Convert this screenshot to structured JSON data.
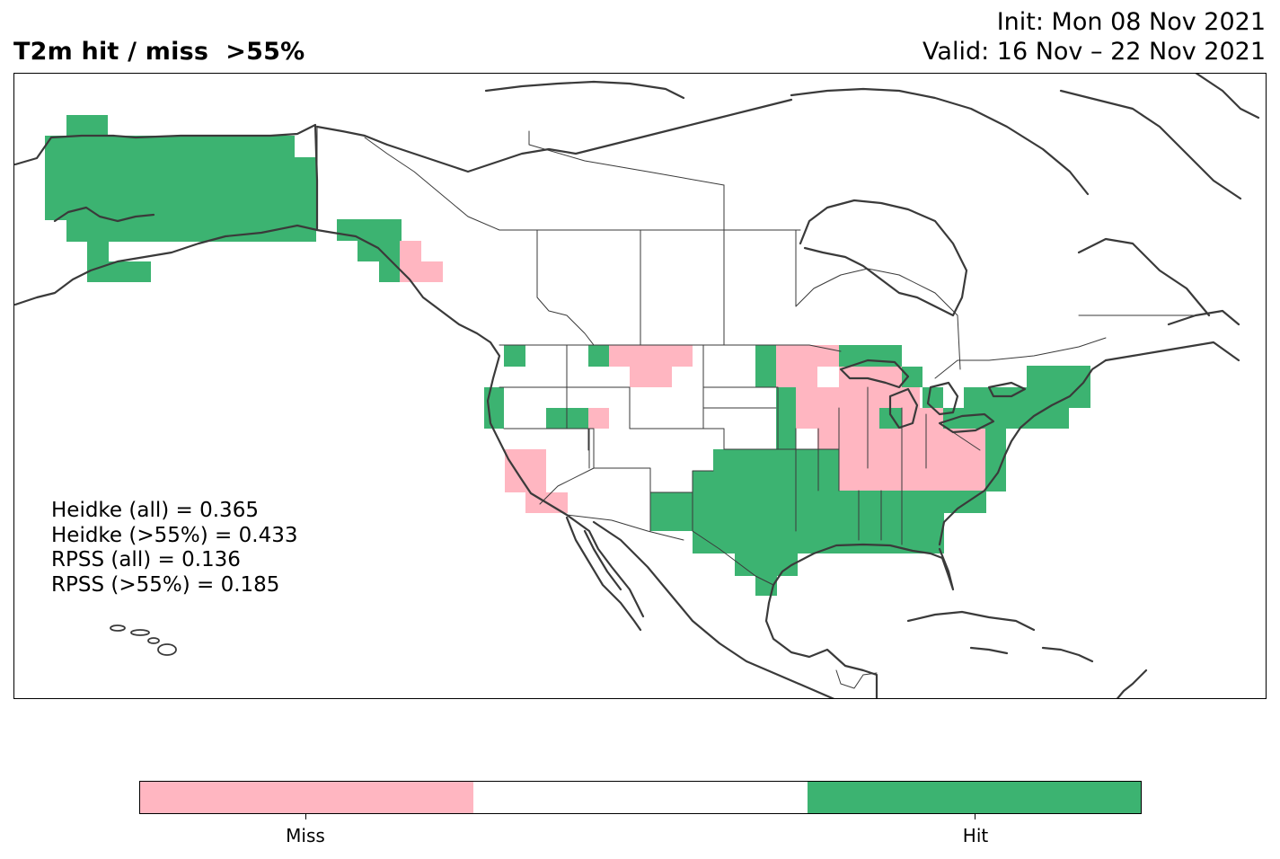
{
  "header": {
    "title_left": "T2m hit / miss  >55%",
    "init_line": "Init: Mon 08 Nov 2021",
    "valid_line": "Valid: 16 Nov – 22 Nov 2021"
  },
  "stats": {
    "heidke_all": "Heidke (all) = 0.365",
    "heidke_55": "Heidke (>55%) = 0.433",
    "rpss_all": "RPSS (all) = 0.136",
    "rpss_55": "RPSS (>55%) = 0.185"
  },
  "colorbar": {
    "colors": [
      "#ffb6c1",
      "#ffffff",
      "#3cb371"
    ],
    "labels": [
      "Miss",
      "Hit"
    ]
  },
  "map": {
    "hit_color": "#3cb371",
    "miss_color": "#ffb6c1",
    "coastline_color": "#3a3a3a"
  }
}
